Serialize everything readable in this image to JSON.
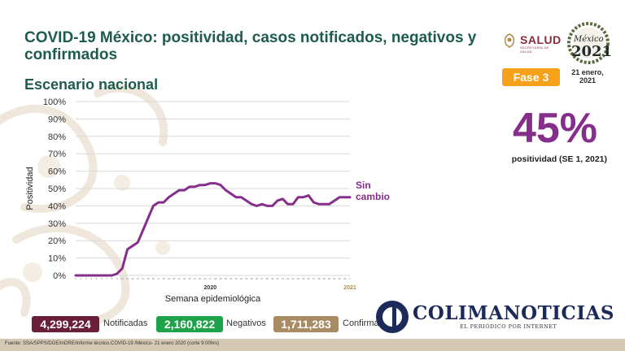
{
  "header": {
    "title": "COVID-19 México: positividad, casos notificados, negativos y confirmados",
    "subtitle": "Escenario nacional"
  },
  "logos": {
    "salud": "SALUD",
    "salud_sub": "SECRETARÍA DE SALUD",
    "mexico": "México",
    "year": "2021"
  },
  "status": {
    "phase": "Fase 3",
    "date": "21 enero, 2021"
  },
  "positivity": {
    "value": "45%",
    "label": "positividad (SE 1, 2021)"
  },
  "summary": {
    "notified_value": "4,299,224",
    "notified_label": "Notificadas",
    "negative_value": "2,160,822",
    "negative_label": "Negativos",
    "confirmed_value": "1,711,283",
    "confirmed_label": "Confirmados"
  },
  "watermark": {
    "name": "COLIMANOTICIAS",
    "tagline": "EL PERIÓDICO POR INTERNET"
  },
  "source": "Fuente: SSA/SPPS/DGE/InDRE/Informe técnico.COVID-19 /México- 21 enero 2020 (corte 9:00hrs)",
  "colors": {
    "title": "#1e5b4f",
    "line": "#862e8b",
    "phase": "#f7a11a",
    "notified": "#6b1e3a",
    "negative": "#1fa34a",
    "confirmed": "#a88a63"
  },
  "chart_data": {
    "type": "line",
    "ylabel": "Positividad",
    "xlabel": "Semana epidemiológica",
    "ylim": [
      0,
      100
    ],
    "yticks": [
      "0%",
      "10%",
      "20%",
      "30%",
      "40%",
      "50%",
      "60%",
      "70%",
      "80%",
      "90%",
      "100%"
    ],
    "year_labels": [
      "2020",
      "2021"
    ],
    "annotation": "Sin cambio",
    "grid": true,
    "x": [
      1,
      2,
      3,
      4,
      5,
      6,
      7,
      8,
      9,
      10,
      11,
      12,
      13,
      14,
      15,
      16,
      17,
      18,
      19,
      20,
      21,
      22,
      23,
      24,
      25,
      26,
      27,
      28,
      29,
      30,
      31,
      32,
      33,
      34,
      35,
      36,
      37,
      38,
      39,
      40,
      41,
      42,
      43,
      44,
      45,
      46,
      47,
      48,
      49,
      50,
      51,
      52,
      53,
      1
    ],
    "series": [
      {
        "values": [
          0,
          0,
          0,
          0,
          0,
          0,
          0,
          0,
          1,
          4,
          15,
          17,
          19,
          26,
          33,
          40,
          42,
          42,
          45,
          47,
          49,
          49,
          51,
          51,
          52,
          52,
          53,
          53,
          52,
          49,
          47,
          45,
          45,
          43,
          41,
          40,
          41,
          40,
          40,
          43,
          44,
          41,
          41,
          45,
          45,
          46,
          42,
          41,
          41,
          41,
          43,
          45,
          45,
          45
        ]
      }
    ]
  }
}
